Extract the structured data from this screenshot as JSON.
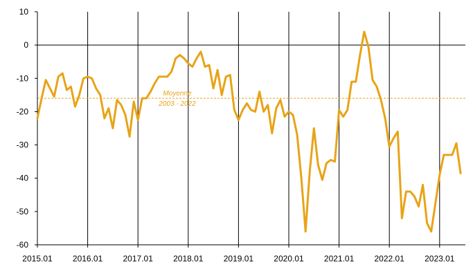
{
  "chart_data": {
    "type": "line",
    "title": "",
    "xlabel": "",
    "ylabel": "",
    "ylim": [
      -60,
      10
    ],
    "yticks": [
      10,
      0,
      -10,
      -20,
      -30,
      -40,
      -50,
      -60
    ],
    "yticks_labels": [
      "10",
      "0",
      "-10",
      "-20",
      "-30",
      "-40",
      "-50",
      "-60"
    ],
    "xlim": [
      "2015-01",
      "2023-06"
    ],
    "xticks": [
      "2015.01",
      "2016.01",
      "2017.01",
      "2018.01",
      "2019.01",
      "2020.01",
      "2021.01",
      "2022.01",
      "2023.01"
    ],
    "grid": "vertical lines at each year",
    "legend": "none",
    "annotation": {
      "line1": "Moyenne",
      "line2": "2003 - 2022",
      "value": -16
    },
    "series": [
      {
        "color": "#E8A317",
        "x": [
          "2015-01",
          "2015-02",
          "2015-03",
          "2015-04",
          "2015-05",
          "2015-06",
          "2015-07",
          "2015-08",
          "2015-09",
          "2015-10",
          "2015-11",
          "2015-12",
          "2016-01",
          "2016-02",
          "2016-03",
          "2016-04",
          "2016-05",
          "2016-06",
          "2016-07",
          "2016-08",
          "2016-09",
          "2016-10",
          "2016-11",
          "2016-12",
          "2017-01",
          "2017-02",
          "2017-03",
          "2017-04",
          "2017-05",
          "2017-06",
          "2017-07",
          "2017-08",
          "2017-09",
          "2017-10",
          "2017-11",
          "2017-12",
          "2018-01",
          "2018-02",
          "2018-03",
          "2018-04",
          "2018-05",
          "2018-06",
          "2018-07",
          "2018-08",
          "2018-09",
          "2018-10",
          "2018-11",
          "2018-12",
          "2019-01",
          "2019-02",
          "2019-03",
          "2019-04",
          "2019-05",
          "2019-06",
          "2019-07",
          "2019-08",
          "2019-09",
          "2019-10",
          "2019-11",
          "2019-12",
          "2020-01",
          "2020-02",
          "2020-03",
          "2020-04",
          "2020-05",
          "2020-06",
          "2020-07",
          "2020-08",
          "2020-09",
          "2020-10",
          "2020-11",
          "2020-12",
          "2021-01",
          "2021-02",
          "2021-03",
          "2021-04",
          "2021-05",
          "2021-06",
          "2021-07",
          "2021-08",
          "2021-09",
          "2021-10",
          "2021-11",
          "2021-12",
          "2022-01",
          "2022-02",
          "2022-03",
          "2022-04",
          "2022-05",
          "2022-06",
          "2022-07",
          "2022-08",
          "2022-09",
          "2022-10",
          "2022-11",
          "2022-12",
          "2023-01",
          "2023-02",
          "2023-03",
          "2023-04",
          "2023-05",
          "2023-06"
        ],
        "values": [
          -22,
          -16,
          -10.5,
          -13,
          -15.5,
          -9.5,
          -8.5,
          -13.5,
          -12.5,
          -18.5,
          -15,
          -10,
          -9.5,
          -10,
          -13,
          -15,
          -22,
          -19,
          -25,
          -16.5,
          -18,
          -21,
          -27.5,
          -17,
          -22.5,
          -16,
          -16,
          -14,
          -11.5,
          -9.5,
          -9.5,
          -9.5,
          -8,
          -4,
          -3,
          -4,
          -5.5,
          -6.5,
          -4,
          -2,
          -6.5,
          -6,
          -13,
          -7.5,
          -15,
          -9.5,
          -9,
          -19.5,
          -22.5,
          -19.5,
          -17.5,
          -19.5,
          -20,
          -14,
          -20,
          -18,
          -26.5,
          -19,
          -16.5,
          -21.5,
          -20,
          -21,
          -27,
          -40,
          -56,
          -38,
          -25,
          -36,
          -40.5,
          -35.5,
          -34.5,
          -35,
          -19.5,
          -21.5,
          -19.5,
          -11,
          -11,
          -3,
          4,
          -0.5,
          -10.5,
          -12.5,
          -16.5,
          -22,
          -30.5,
          -28,
          -26,
          -52,
          -44,
          -44,
          -45.5,
          -48.5,
          -42,
          -53.5,
          -56,
          -47.5,
          -39,
          -33,
          -33,
          -33,
          -29.5,
          -38.5
        ]
      }
    ]
  }
}
